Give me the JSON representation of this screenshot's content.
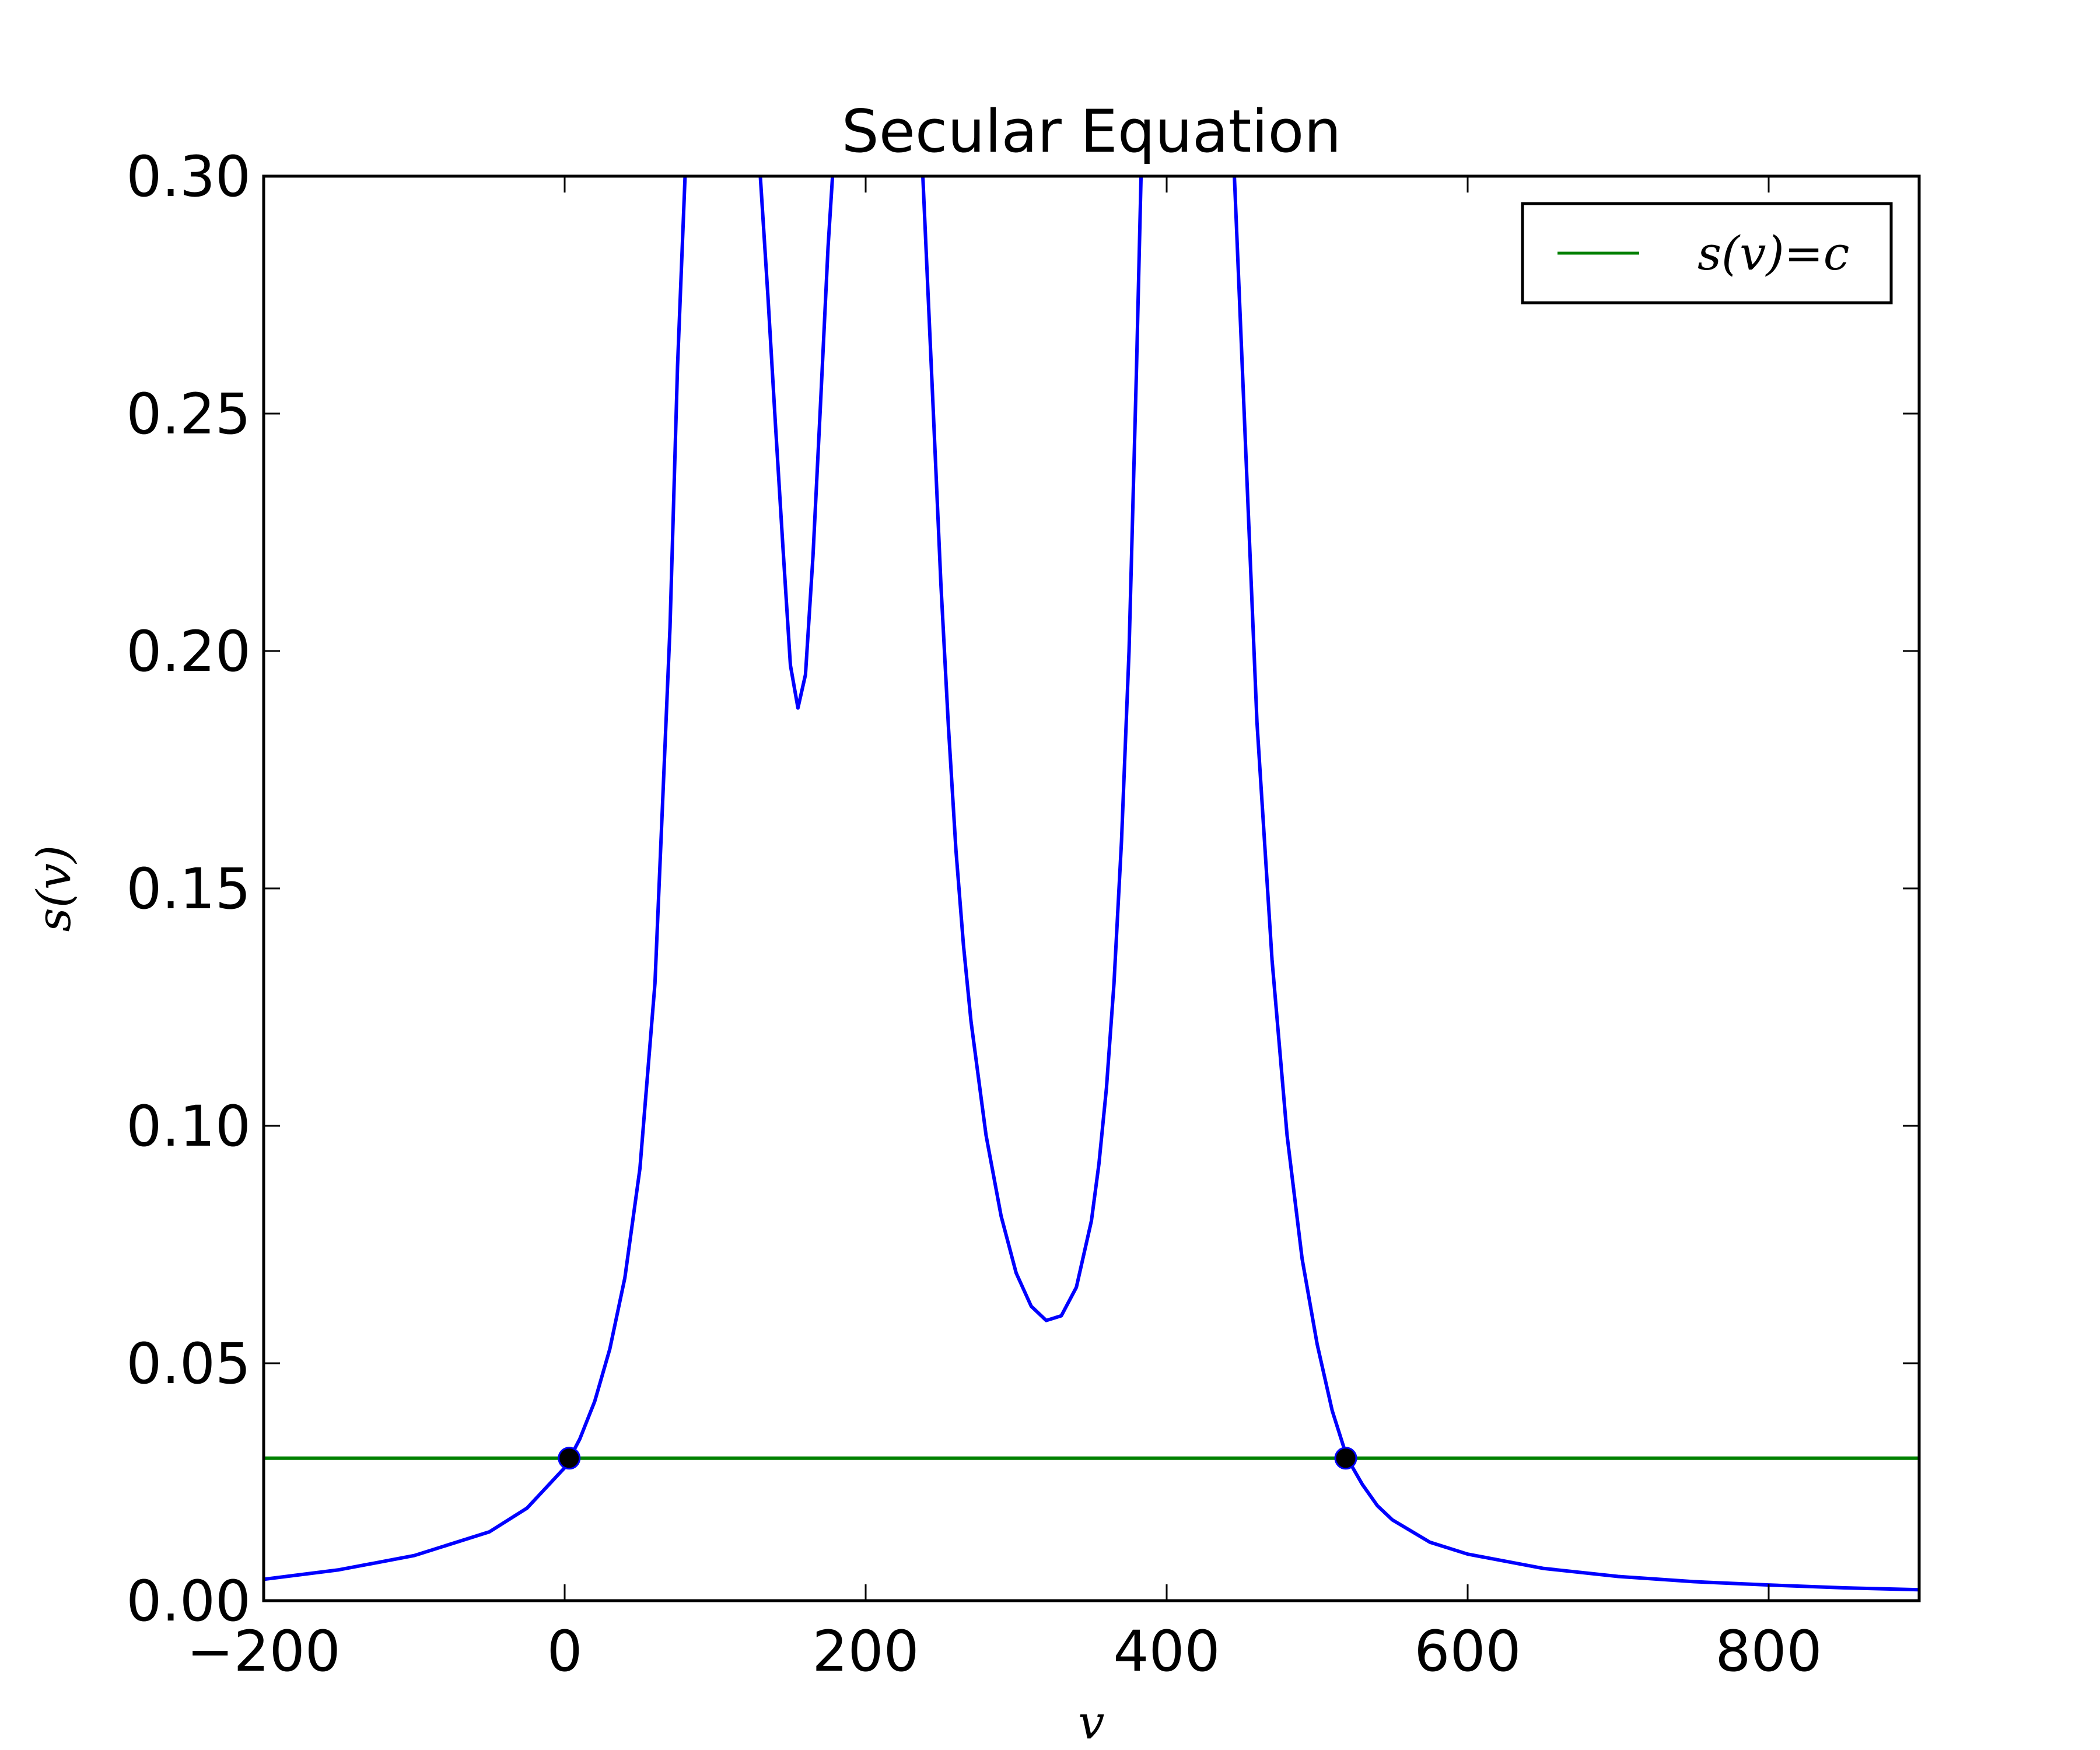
{
  "chart_data": {
    "type": "line",
    "title": "Secular Equation",
    "xlabel": "v",
    "ylabel": "s(v)",
    "xlim": [
      -200,
      900
    ],
    "ylim": [
      0.0,
      0.3
    ],
    "xticks": [
      -200,
      0,
      200,
      400,
      600,
      800
    ],
    "xtick_labels": [
      "−200",
      "0",
      "200",
      "400",
      "600",
      "800"
    ],
    "yticks": [
      0.0,
      0.05,
      0.1,
      0.15,
      0.2,
      0.25,
      0.3
    ],
    "ytick_labels": [
      "0.00",
      "0.05",
      "0.10",
      "0.15",
      "0.20",
      "0.25",
      "0.30"
    ],
    "grid": false,
    "legend": {
      "position": "top-right",
      "entries": [
        "s(v)=c"
      ]
    },
    "series": [
      {
        "kind": "curve",
        "color": "#0000ff",
        "poles": [
          100,
          150,
          200,
          420
        ],
        "segments": [
          {
            "x": [
              -200,
              -150,
              -100,
              -50,
              -25,
              0,
              10,
              20,
              30,
              40,
              50,
              60,
              70,
              75,
              80
            ],
            "y": [
              0.0045,
              0.0065,
              0.0095,
              0.0145,
              0.0195,
              0.028,
              0.034,
              0.042,
              0.053,
              0.068,
              0.091,
              0.13,
              0.205,
              0.26,
              0.3
            ]
          },
          {
            "x": [
              130,
              135,
              140,
              145,
              150,
              155,
              160,
              165,
              170,
              175,
              178
            ],
            "y": [
              0.3,
              0.275,
              0.248,
              0.222,
              0.197,
              0.188,
              0.195,
              0.22,
              0.252,
              0.285,
              0.3
            ]
          },
          {
            "x": [
              238,
              245,
              250,
              255,
              260,
              265,
              270,
              280,
              290,
              300,
              310,
              320,
              330,
              340,
              350,
              355,
              360,
              365,
              370,
              375,
              380,
              383
            ],
            "y": [
              0.3,
              0.25,
              0.214,
              0.184,
              0.158,
              0.138,
              0.122,
              0.098,
              0.081,
              0.069,
              0.062,
              0.059,
              0.06,
              0.066,
              0.08,
              0.092,
              0.108,
              0.13,
              0.16,
              0.2,
              0.26,
              0.3
            ]
          },
          {
            "x": [
              445,
              460,
              470,
              480,
              490,
              500,
              510,
              520,
              530,
              540,
              550,
              575,
              600,
              650,
              700,
              750,
              800,
              850,
              900
            ],
            "y": [
              0.3,
              0.185,
              0.135,
              0.098,
              0.072,
              0.054,
              0.04,
              0.03,
              0.0245,
              0.02,
              0.017,
              0.0123,
              0.0098,
              0.0068,
              0.0051,
              0.004,
              0.0033,
              0.0027,
              0.0023
            ]
          }
        ]
      },
      {
        "name": "s(v)=c",
        "kind": "hline",
        "color": "#008000",
        "y": 0.03
      },
      {
        "kind": "points",
        "color": "#000000",
        "x": [
          3,
          519
        ],
        "y": [
          0.03,
          0.03
        ]
      }
    ]
  }
}
